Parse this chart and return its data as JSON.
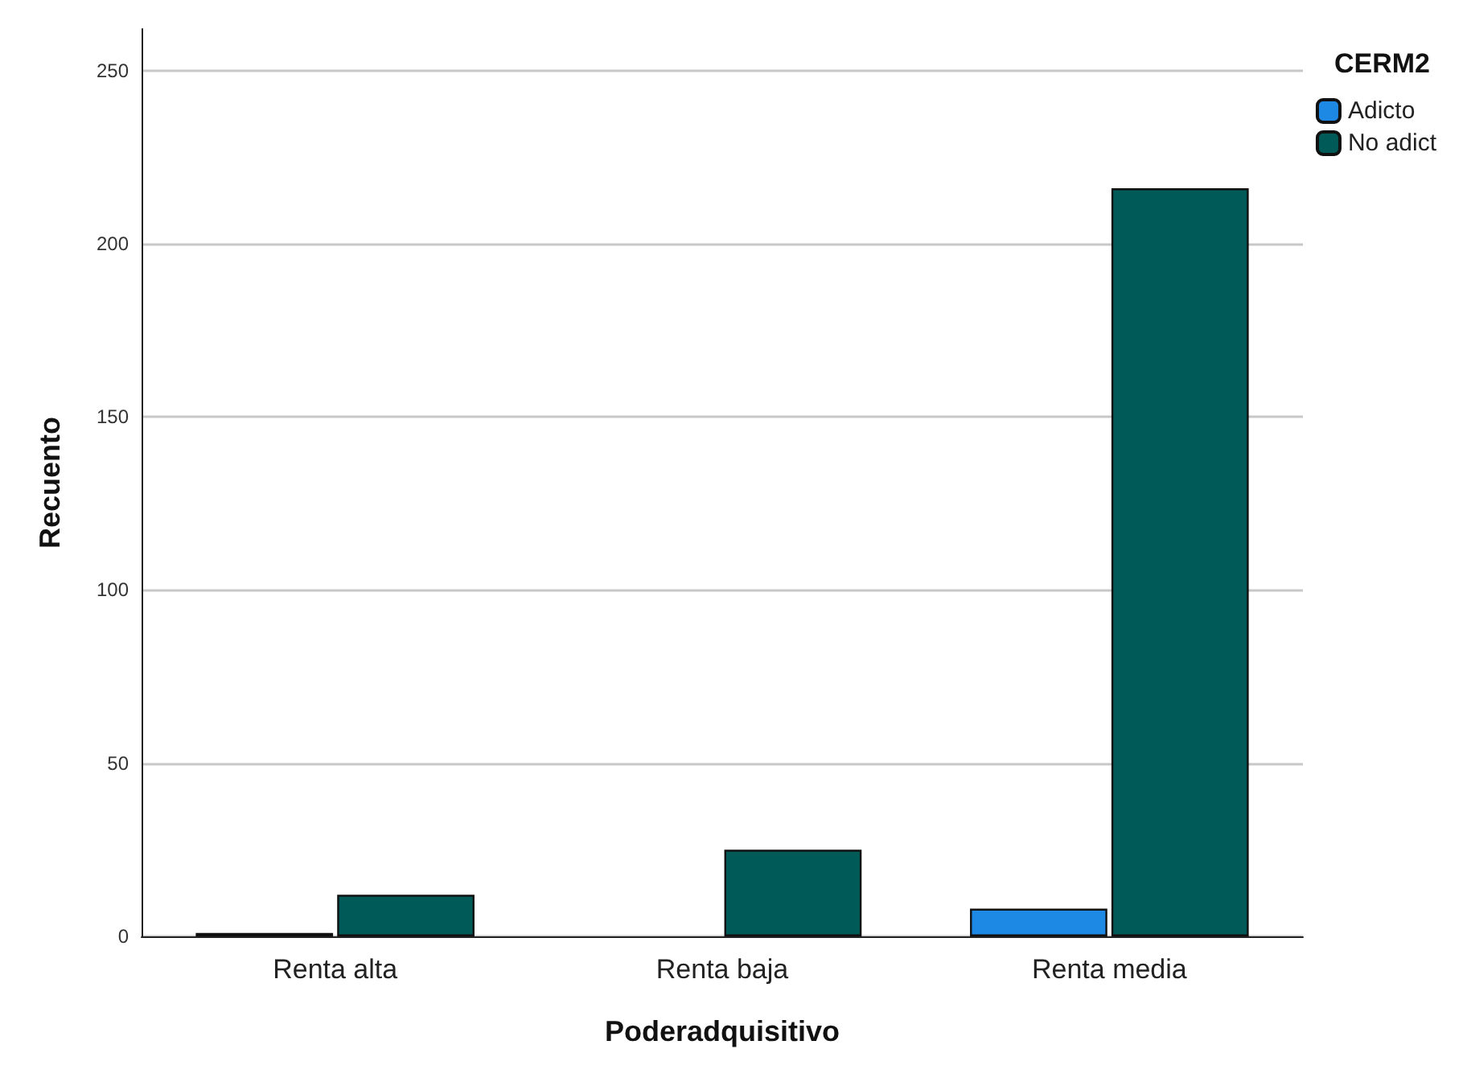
{
  "chart_data": {
    "type": "bar",
    "xlabel": "Poderadquisitivo",
    "ylabel": "Recuento",
    "legend_title": "CERM2",
    "categories": [
      "Renta alta",
      "Renta baja",
      "Renta media"
    ],
    "series": [
      {
        "name": "Adicto",
        "color": "#1e88e5",
        "values": [
          1,
          null,
          8
        ]
      },
      {
        "name": "No adict",
        "color": "#005a57",
        "values": [
          12,
          25,
          216
        ]
      }
    ],
    "ylim": [
      0,
      262
    ],
    "yticks": [
      0,
      50,
      100,
      150,
      200,
      250
    ],
    "grid": "y",
    "legend": "top right"
  }
}
